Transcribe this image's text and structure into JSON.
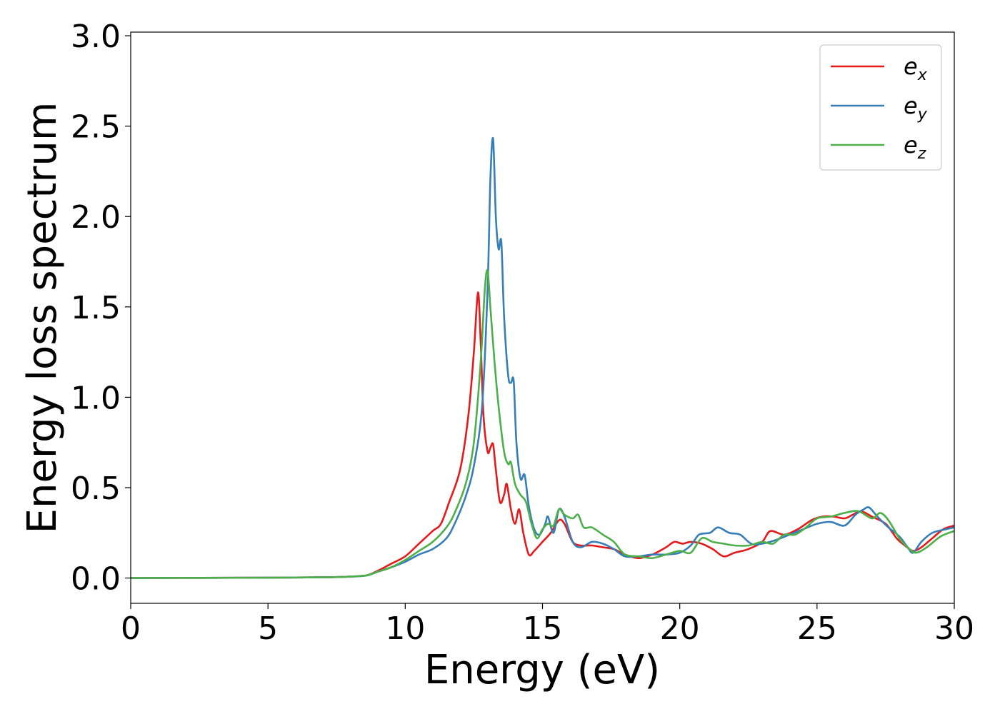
{
  "chart_data": {
    "type": "line",
    "title": "",
    "xlabel": "Energy (eV)",
    "ylabel": "Energy loss spectrum",
    "xlim": [
      0,
      30
    ],
    "ylim": [
      -0.14,
      3.02
    ],
    "xticks": [
      "0",
      "5",
      "10",
      "15",
      "20",
      "25",
      "30"
    ],
    "yticks": [
      "0.0",
      "0.5",
      "1.0",
      "1.5",
      "2.0",
      "2.5",
      "3.0"
    ],
    "grid": false,
    "legend_position": "top-right",
    "series": [
      {
        "name": "e",
        "subscript": "x",
        "color": "#e41a1c",
        "points": [
          [
            0,
            0
          ],
          [
            5,
            0.002
          ],
          [
            7,
            0.004
          ],
          [
            8,
            0.008
          ],
          [
            8.6,
            0.015
          ],
          [
            9,
            0.04
          ],
          [
            9.5,
            0.08
          ],
          [
            10,
            0.12
          ],
          [
            10.5,
            0.19
          ],
          [
            11,
            0.26
          ],
          [
            11.3,
            0.3
          ],
          [
            11.6,
            0.42
          ],
          [
            12,
            0.6
          ],
          [
            12.3,
            0.9
          ],
          [
            12.5,
            1.25
          ],
          [
            12.65,
            1.58
          ],
          [
            12.75,
            1.3
          ],
          [
            12.85,
            0.9
          ],
          [
            13,
            0.7
          ],
          [
            13.1,
            0.72
          ],
          [
            13.2,
            0.74
          ],
          [
            13.3,
            0.6
          ],
          [
            13.45,
            0.42
          ],
          [
            13.6,
            0.46
          ],
          [
            13.7,
            0.52
          ],
          [
            13.85,
            0.38
          ],
          [
            14,
            0.3
          ],
          [
            14.15,
            0.38
          ],
          [
            14.3,
            0.25
          ],
          [
            14.5,
            0.13
          ],
          [
            14.7,
            0.15
          ],
          [
            15,
            0.2
          ],
          [
            15.3,
            0.25
          ],
          [
            15.6,
            0.32
          ],
          [
            15.8,
            0.3
          ],
          [
            16.1,
            0.2
          ],
          [
            16.4,
            0.18
          ],
          [
            16.8,
            0.18
          ],
          [
            17.2,
            0.17
          ],
          [
            17.6,
            0.16
          ],
          [
            18,
            0.13
          ],
          [
            18.5,
            0.11
          ],
          [
            19,
            0.13
          ],
          [
            19.5,
            0.17
          ],
          [
            19.8,
            0.2
          ],
          [
            20.1,
            0.19
          ],
          [
            20.4,
            0.2
          ],
          [
            20.8,
            0.19
          ],
          [
            21.2,
            0.16
          ],
          [
            21.6,
            0.12
          ],
          [
            22,
            0.14
          ],
          [
            22.5,
            0.16
          ],
          [
            23,
            0.2
          ],
          [
            23.3,
            0.26
          ],
          [
            23.8,
            0.24
          ],
          [
            24.3,
            0.27
          ],
          [
            24.8,
            0.32
          ],
          [
            25.2,
            0.34
          ],
          [
            25.6,
            0.34
          ],
          [
            26,
            0.33
          ],
          [
            26.3,
            0.35
          ],
          [
            26.6,
            0.37
          ],
          [
            27,
            0.34
          ],
          [
            27.5,
            0.3
          ],
          [
            27.9,
            0.22
          ],
          [
            28.2,
            0.18
          ],
          [
            28.5,
            0.15
          ],
          [
            28.8,
            0.17
          ],
          [
            29.2,
            0.22
          ],
          [
            29.6,
            0.27
          ],
          [
            30,
            0.29
          ]
        ]
      },
      {
        "name": "e",
        "subscript": "y",
        "color": "#377eb8",
        "points": [
          [
            0,
            0
          ],
          [
            5,
            0.002
          ],
          [
            7,
            0.004
          ],
          [
            8,
            0.008
          ],
          [
            8.6,
            0.014
          ],
          [
            9,
            0.035
          ],
          [
            9.5,
            0.06
          ],
          [
            10,
            0.09
          ],
          [
            10.5,
            0.13
          ],
          [
            11,
            0.16
          ],
          [
            11.5,
            0.22
          ],
          [
            11.8,
            0.3
          ],
          [
            12.2,
            0.45
          ],
          [
            12.5,
            0.62
          ],
          [
            12.8,
            0.95
          ],
          [
            13,
            1.6
          ],
          [
            13.1,
            2.2
          ],
          [
            13.2,
            2.43
          ],
          [
            13.3,
            2.0
          ],
          [
            13.4,
            1.82
          ],
          [
            13.5,
            1.86
          ],
          [
            13.6,
            1.45
          ],
          [
            13.75,
            1.12
          ],
          [
            13.85,
            1.08
          ],
          [
            13.95,
            1.09
          ],
          [
            14.05,
            0.75
          ],
          [
            14.2,
            0.55
          ],
          [
            14.35,
            0.57
          ],
          [
            14.5,
            0.4
          ],
          [
            14.7,
            0.27
          ],
          [
            14.9,
            0.24
          ],
          [
            15.1,
            0.3
          ],
          [
            15.2,
            0.34
          ],
          [
            15.4,
            0.25
          ],
          [
            15.6,
            0.38
          ],
          [
            15.8,
            0.34
          ],
          [
            16.1,
            0.2
          ],
          [
            16.4,
            0.17
          ],
          [
            16.8,
            0.2
          ],
          [
            17.2,
            0.19
          ],
          [
            17.6,
            0.16
          ],
          [
            18,
            0.12
          ],
          [
            18.5,
            0.12
          ],
          [
            19,
            0.13
          ],
          [
            19.5,
            0.13
          ],
          [
            20,
            0.14
          ],
          [
            20.4,
            0.18
          ],
          [
            20.7,
            0.24
          ],
          [
            21.1,
            0.25
          ],
          [
            21.4,
            0.28
          ],
          [
            21.8,
            0.25
          ],
          [
            22.2,
            0.24
          ],
          [
            22.6,
            0.19
          ],
          [
            23,
            0.19
          ],
          [
            23.5,
            0.21
          ],
          [
            24,
            0.24
          ],
          [
            24.5,
            0.27
          ],
          [
            25,
            0.3
          ],
          [
            25.5,
            0.31
          ],
          [
            26,
            0.29
          ],
          [
            26.4,
            0.35
          ],
          [
            26.7,
            0.38
          ],
          [
            26.9,
            0.39
          ],
          [
            27.2,
            0.34
          ],
          [
            27.6,
            0.28
          ],
          [
            28,
            0.23
          ],
          [
            28.3,
            0.17
          ],
          [
            28.5,
            0.14
          ],
          [
            28.8,
            0.2
          ],
          [
            29.2,
            0.25
          ],
          [
            29.7,
            0.27
          ],
          [
            30,
            0.28
          ]
        ]
      },
      {
        "name": "e",
        "subscript": "z",
        "color": "#4daf4a",
        "points": [
          [
            0,
            0
          ],
          [
            5,
            0.002
          ],
          [
            7,
            0.004
          ],
          [
            8,
            0.008
          ],
          [
            8.6,
            0.015
          ],
          [
            9,
            0.035
          ],
          [
            9.5,
            0.06
          ],
          [
            10,
            0.1
          ],
          [
            10.5,
            0.15
          ],
          [
            11,
            0.2
          ],
          [
            11.5,
            0.28
          ],
          [
            11.8,
            0.36
          ],
          [
            12.2,
            0.52
          ],
          [
            12.5,
            0.75
          ],
          [
            12.75,
            1.2
          ],
          [
            12.9,
            1.6
          ],
          [
            13,
            1.7
          ],
          [
            13.1,
            1.5
          ],
          [
            13.25,
            1.2
          ],
          [
            13.4,
            0.95
          ],
          [
            13.6,
            0.7
          ],
          [
            13.75,
            0.63
          ],
          [
            13.85,
            0.64
          ],
          [
            14,
            0.52
          ],
          [
            14.2,
            0.46
          ],
          [
            14.4,
            0.42
          ],
          [
            14.6,
            0.3
          ],
          [
            14.8,
            0.22
          ],
          [
            15,
            0.27
          ],
          [
            15.2,
            0.3
          ],
          [
            15.4,
            0.29
          ],
          [
            15.6,
            0.38
          ],
          [
            15.8,
            0.35
          ],
          [
            16.1,
            0.33
          ],
          [
            16.3,
            0.35
          ],
          [
            16.5,
            0.28
          ],
          [
            16.8,
            0.28
          ],
          [
            17.2,
            0.24
          ],
          [
            17.6,
            0.2
          ],
          [
            18,
            0.13
          ],
          [
            18.5,
            0.12
          ],
          [
            19,
            0.11
          ],
          [
            19.5,
            0.13
          ],
          [
            20,
            0.15
          ],
          [
            20.4,
            0.14
          ],
          [
            20.8,
            0.22
          ],
          [
            21.2,
            0.2
          ],
          [
            21.6,
            0.19
          ],
          [
            22,
            0.18
          ],
          [
            22.5,
            0.18
          ],
          [
            23,
            0.2
          ],
          [
            23.4,
            0.19
          ],
          [
            23.8,
            0.24
          ],
          [
            24.2,
            0.24
          ],
          [
            24.6,
            0.28
          ],
          [
            25,
            0.33
          ],
          [
            25.5,
            0.34
          ],
          [
            26,
            0.36
          ],
          [
            26.5,
            0.37
          ],
          [
            27,
            0.33
          ],
          [
            27.3,
            0.36
          ],
          [
            27.6,
            0.32
          ],
          [
            28,
            0.22
          ],
          [
            28.3,
            0.17
          ],
          [
            28.6,
            0.14
          ],
          [
            29,
            0.17
          ],
          [
            29.5,
            0.23
          ],
          [
            30,
            0.26
          ]
        ]
      }
    ]
  }
}
